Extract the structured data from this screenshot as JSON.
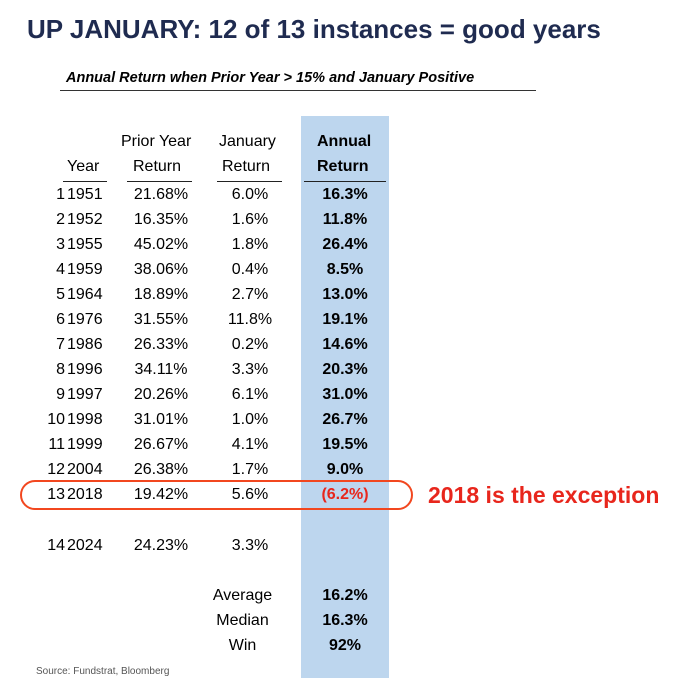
{
  "title": "UP JANUARY: 12 of 13 instances = good years",
  "subtitle": "Annual Return when Prior Year > 15% and January Positive",
  "callout": "2018 is the exception",
  "source": "Source: Fundstrat, Bloomberg",
  "colors": {
    "title": "#1f2b50",
    "accent": "#e8261c",
    "band": "#bdd6ee"
  },
  "chart_data": {
    "type": "table",
    "title": "Annual Return when Prior Year > 15% and January Positive",
    "columns": [
      {
        "line1": "",
        "line2": "Year"
      },
      {
        "line1": "Prior Year",
        "line2": "Return"
      },
      {
        "line1": "January",
        "line2": "Return"
      },
      {
        "line1": "Annual",
        "line2": "Return"
      }
    ],
    "rows": [
      {
        "n": "1",
        "year": "1951",
        "prior": "21.68%",
        "jan": "6.0%",
        "annual": "16.3%"
      },
      {
        "n": "2",
        "year": "1952",
        "prior": "16.35%",
        "jan": "1.6%",
        "annual": "11.8%"
      },
      {
        "n": "3",
        "year": "1955",
        "prior": "45.02%",
        "jan": "1.8%",
        "annual": "26.4%"
      },
      {
        "n": "4",
        "year": "1959",
        "prior": "38.06%",
        "jan": "0.4%",
        "annual": "8.5%"
      },
      {
        "n": "5",
        "year": "1964",
        "prior": "18.89%",
        "jan": "2.7%",
        "annual": "13.0%"
      },
      {
        "n": "6",
        "year": "1976",
        "prior": "31.55%",
        "jan": "11.8%",
        "annual": "19.1%"
      },
      {
        "n": "7",
        "year": "1986",
        "prior": "26.33%",
        "jan": "0.2%",
        "annual": "14.6%"
      },
      {
        "n": "8",
        "year": "1996",
        "prior": "34.11%",
        "jan": "3.3%",
        "annual": "20.3%"
      },
      {
        "n": "9",
        "year": "1997",
        "prior": "20.26%",
        "jan": "6.1%",
        "annual": "31.0%"
      },
      {
        "n": "10",
        "year": "1998",
        "prior": "31.01%",
        "jan": "1.0%",
        "annual": "26.7%"
      },
      {
        "n": "11",
        "year": "1999",
        "prior": "26.67%",
        "jan": "4.1%",
        "annual": "19.5%"
      },
      {
        "n": "12",
        "year": "2004",
        "prior": "26.38%",
        "jan": "1.7%",
        "annual": "9.0%"
      },
      {
        "n": "13",
        "year": "2018",
        "prior": "19.42%",
        "jan": "5.6%",
        "annual": "(6.2%)",
        "negative": true
      },
      {
        "n": "14",
        "year": "2024",
        "prior": "24.23%",
        "jan": "3.3%",
        "annual": ""
      }
    ],
    "summary": [
      {
        "label": "Average",
        "value": "16.2%"
      },
      {
        "label": "Median",
        "value": "16.3%"
      },
      {
        "label": "Win",
        "value": "92%"
      }
    ]
  }
}
